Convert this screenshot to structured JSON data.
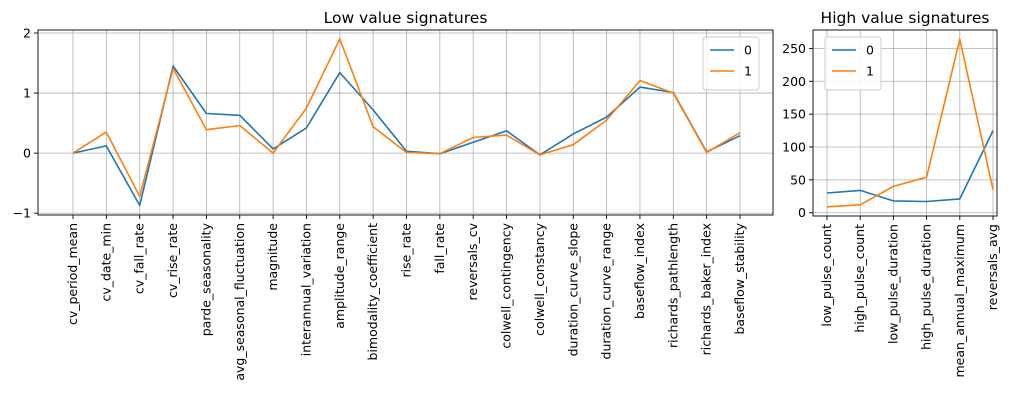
{
  "chart_data": [
    {
      "type": "line",
      "title": "Low value signatures",
      "categories": [
        "cv_period_mean",
        "cv_date_min",
        "cv_fall_rate",
        "cv_rise_rate",
        "parde_seasonality",
        "avg_seasonal_fluctuation",
        "magnitude",
        "interannual_variation",
        "amplitude_range",
        "bimodality_coefficient",
        "rise_rate",
        "fall_rate",
        "reversals_cv",
        "colwell_contingency",
        "colwell_constancy",
        "duration_curve_slope",
        "duration_curve_range",
        "baseflow_index",
        "richards_pathlength",
        "richards_baker_index",
        "baseflow_stability"
      ],
      "series": [
        {
          "name": "0",
          "color": "#1f77b4",
          "values": [
            0.0,
            0.12,
            -0.87,
            1.45,
            0.66,
            0.63,
            0.07,
            0.42,
            1.34,
            0.72,
            0.03,
            -0.01,
            0.18,
            0.37,
            -0.03,
            0.32,
            0.6,
            1.1,
            1.01,
            0.02,
            0.29
          ]
        },
        {
          "name": "1",
          "color": "#ff7f0e",
          "values": [
            0.0,
            0.35,
            -0.72,
            1.41,
            0.39,
            0.46,
            0.0,
            0.75,
            1.9,
            0.44,
            0.01,
            -0.01,
            0.26,
            0.3,
            -0.03,
            0.14,
            0.55,
            1.21,
            1.0,
            0.01,
            0.34
          ]
        }
      ],
      "ylim": [
        -1.03,
        2.05
      ],
      "yticks": [
        -1,
        0,
        1,
        2
      ],
      "ytick_labels": [
        "−1",
        "0",
        "1",
        "2"
      ],
      "grid": true,
      "legend": "top-right"
    },
    {
      "type": "line",
      "title": "High value signatures",
      "categories": [
        "low_pulse_count",
        "high_pulse_count",
        "low_pulse_duration",
        "high_pulse_duration",
        "mean_annual_maximum",
        "reversals_avg"
      ],
      "series": [
        {
          "name": "0",
          "color": "#1f77b4",
          "values": [
            30,
            34,
            18,
            17,
            21,
            125
          ]
        },
        {
          "name": "1",
          "color": "#ff7f0e",
          "values": [
            9,
            12,
            40,
            54,
            264,
            35
          ]
        }
      ],
      "ylim": [
        -5,
        278
      ],
      "yticks": [
        0,
        50,
        100,
        150,
        200,
        250
      ],
      "ytick_labels": [
        "0",
        "50",
        "100",
        "150",
        "200",
        "250"
      ],
      "grid": true,
      "legend": "top-left"
    }
  ]
}
